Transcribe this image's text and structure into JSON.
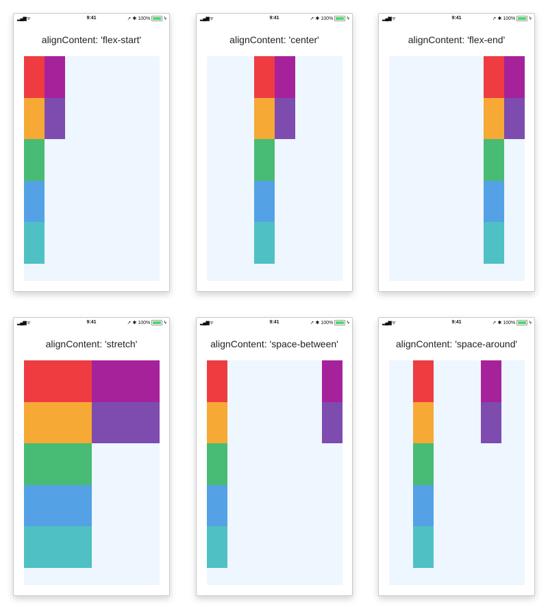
{
  "status_bar": {
    "time": "9:41",
    "battery": "100%",
    "signal_icon": "signal-icon",
    "wifi_icon": "wifi-icon"
  },
  "box_colors": [
    "#EE3C41",
    "#A6229B",
    "#F6A935",
    "#7E4BAF",
    "#48BC74",
    "#55A1E5",
    "#4FC1C4"
  ],
  "screens": [
    {
      "title": "alignContent: 'flex-start'",
      "value": "flex-start"
    },
    {
      "title": "alignContent: 'center'",
      "value": "center"
    },
    {
      "title": "alignContent: 'flex-end'",
      "value": "flex-end"
    },
    {
      "title": "alignContent: 'stretch'",
      "value": "stretch"
    },
    {
      "title": "alignContent: 'space-between'",
      "value": "space-between"
    },
    {
      "title": "alignContent: 'space-around'",
      "value": "space-around"
    }
  ]
}
